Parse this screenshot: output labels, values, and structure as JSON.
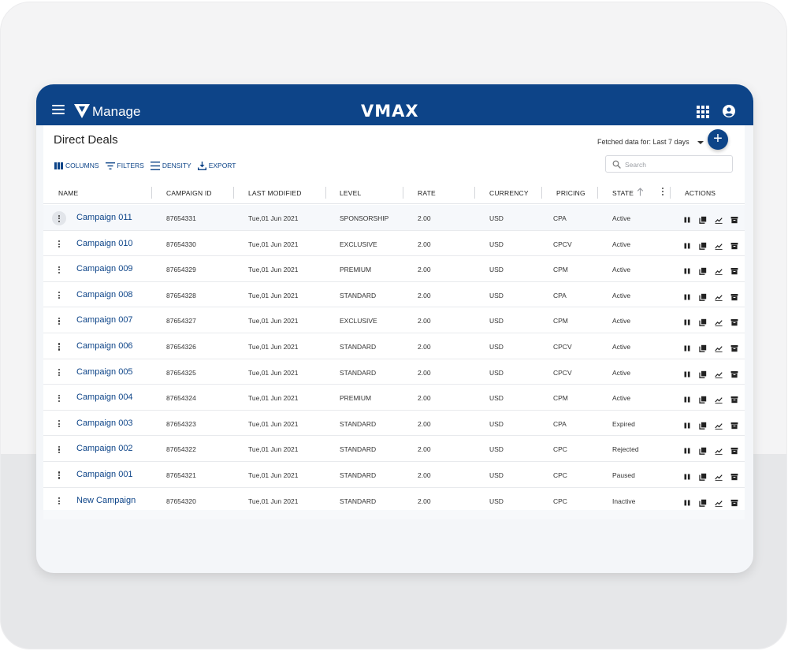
{
  "header": {
    "brand_label": "Manage",
    "logo_text": "VMAX"
  },
  "page": {
    "title": "Direct Deals",
    "fetched_label": "Fetched data for: Last 7 days",
    "add_button_label": "+"
  },
  "toolbar": {
    "columns": "COLUMNS",
    "filters": "FILTERS",
    "density": "DENSITY",
    "export": "EXPORT"
  },
  "search": {
    "placeholder": "Search",
    "value": ""
  },
  "columns": [
    "NAME",
    "CAMPAIGN ID",
    "LAST MODIFIED",
    "LEVEL",
    "RATE",
    "CURRENCY",
    "PRICING",
    "STATE",
    "ACTIONS"
  ],
  "rows": [
    {
      "name": "Campaign 011",
      "id": "87654331",
      "modified": "Tue,01 Jun 2021",
      "level": "SPONSORSHIP",
      "rate": "2.00",
      "currency": "USD",
      "pricing": "CPA",
      "state": "Active"
    },
    {
      "name": "Campaign 010",
      "id": "87654330",
      "modified": "Tue,01 Jun 2021",
      "level": "EXCLUSIVE",
      "rate": "2.00",
      "currency": "USD",
      "pricing": "CPCV",
      "state": "Active"
    },
    {
      "name": "Campaign 009",
      "id": "87654329",
      "modified": "Tue,01 Jun 2021",
      "level": "PREMIUM",
      "rate": "2.00",
      "currency": "USD",
      "pricing": "CPM",
      "state": "Active"
    },
    {
      "name": "Campaign 008",
      "id": "87654328",
      "modified": "Tue,01 Jun 2021",
      "level": "STANDARD",
      "rate": "2.00",
      "currency": "USD",
      "pricing": "CPA",
      "state": "Active"
    },
    {
      "name": "Campaign 007",
      "id": "87654327",
      "modified": "Tue,01 Jun 2021",
      "level": "EXCLUSIVE",
      "rate": "2.00",
      "currency": "USD",
      "pricing": "CPM",
      "state": "Active"
    },
    {
      "name": "Campaign 006",
      "id": "87654326",
      "modified": "Tue,01 Jun 2021",
      "level": "STANDARD",
      "rate": "2.00",
      "currency": "USD",
      "pricing": "CPCV",
      "state": "Active"
    },
    {
      "name": "Campaign 005",
      "id": "87654325",
      "modified": "Tue,01 Jun 2021",
      "level": "STANDARD",
      "rate": "2.00",
      "currency": "USD",
      "pricing": "CPCV",
      "state": "Active"
    },
    {
      "name": "Campaign 004",
      "id": "87654324",
      "modified": "Tue,01 Jun 2021",
      "level": "PREMIUM",
      "rate": "2.00",
      "currency": "USD",
      "pricing": "CPM",
      "state": "Active"
    },
    {
      "name": "Campaign 003",
      "id": "87654323",
      "modified": "Tue,01 Jun 2021",
      "level": "STANDARD",
      "rate": "2.00",
      "currency": "USD",
      "pricing": "CPA",
      "state": "Expired"
    },
    {
      "name": "Campaign 002",
      "id": "87654322",
      "modified": "Tue,01 Jun 2021",
      "level": "STANDARD",
      "rate": "2.00",
      "currency": "USD",
      "pricing": "CPC",
      "state": "Rejected"
    },
    {
      "name": "Campaign 001",
      "id": "87654321",
      "modified": "Tue,01 Jun 2021",
      "level": "STANDARD",
      "rate": "2.00",
      "currency": "USD",
      "pricing": "CPC",
      "state": "Paused"
    },
    {
      "name": "New Campaign",
      "id": "87654320",
      "modified": "Tue,01 Jun 2021",
      "level": "STANDARD",
      "rate": "2.00",
      "currency": "USD",
      "pricing": "CPC",
      "state": "Inactive"
    }
  ],
  "row_action_icons": [
    "pause-icon",
    "copy-icon",
    "chart-icon",
    "archive-icon"
  ],
  "colors": {
    "brand": "#0d4488",
    "link": "#0d4488",
    "background": "#f4f6f9"
  }
}
